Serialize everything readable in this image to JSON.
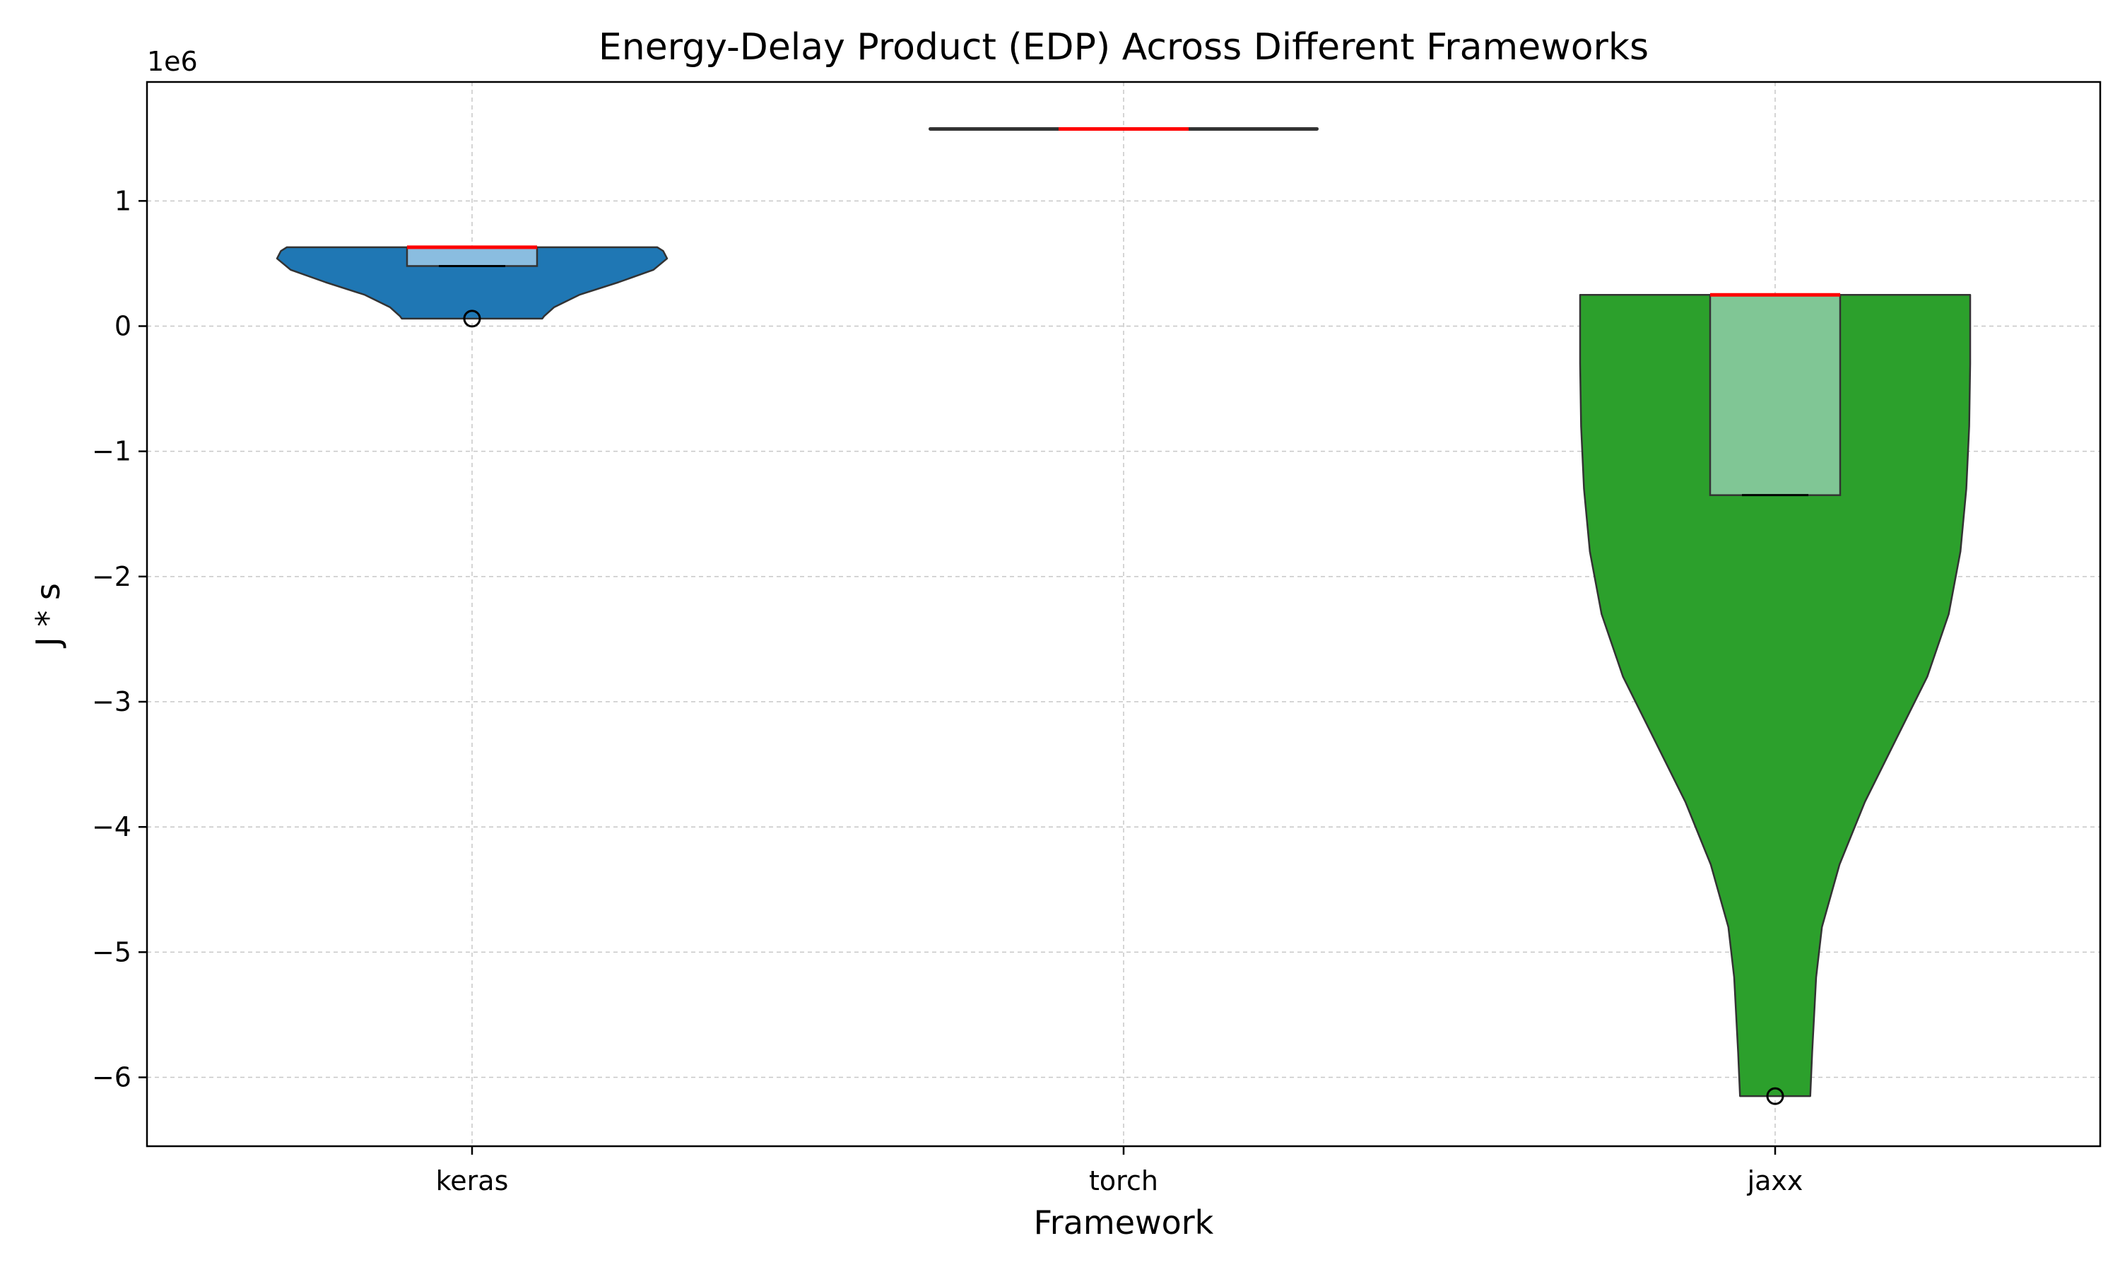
{
  "chart_data": {
    "type": "violin",
    "title": "Energy-Delay Product (EDP) Across Different Frameworks",
    "xlabel": "Framework",
    "ylabel": "J * s",
    "y_offset_label": "1e6",
    "y_scale": 1000000,
    "ylim": [
      -6550000,
      1950000
    ],
    "yticks": [
      -6,
      -5,
      -4,
      -3,
      -2,
      -1,
      0,
      1
    ],
    "grid": true,
    "categories": [
      "keras",
      "torch",
      "jaxx"
    ],
    "series": [
      {
        "category": "keras",
        "color": "#1f77b4",
        "box_color": "#9ec9e8",
        "min": 60000,
        "max": 630000,
        "q1": 480000,
        "median": 630000,
        "q3": 630000,
        "outliers": [
          60000
        ],
        "density_widths": [
          [
            60000,
            0.36
          ],
          [
            80000,
            0.37
          ],
          [
            150000,
            0.42
          ],
          [
            250000,
            0.55
          ],
          [
            350000,
            0.75
          ],
          [
            450000,
            0.93
          ],
          [
            540000,
            1.0
          ],
          [
            600000,
            0.98
          ],
          [
            630000,
            0.95
          ]
        ]
      },
      {
        "category": "torch",
        "color": "#ff7f0e",
        "box_color": "#ffbf86",
        "min": 1575000,
        "max": 1575000,
        "q1": 1575000,
        "median": 1575000,
        "q3": 1575000,
        "outliers": [],
        "density_widths": []
      },
      {
        "category": "jaxx",
        "color": "#2ca02c",
        "box_color": "#8fcca8",
        "min": -6150000,
        "max": 250000,
        "q1": -1350000,
        "median": 250000,
        "q3": 250000,
        "outliers": [
          -6150000
        ],
        "density_widths": [
          [
            -6150000,
            0.18
          ],
          [
            -5800000,
            0.19
          ],
          [
            -5500000,
            0.2
          ],
          [
            -5200000,
            0.21
          ],
          [
            -4800000,
            0.24
          ],
          [
            -4300000,
            0.33
          ],
          [
            -3800000,
            0.46
          ],
          [
            -3300000,
            0.62
          ],
          [
            -2800000,
            0.78
          ],
          [
            -2300000,
            0.89
          ],
          [
            -1800000,
            0.95
          ],
          [
            -1300000,
            0.98
          ],
          [
            -800000,
            0.995
          ],
          [
            -300000,
            1.0
          ],
          [
            250000,
            1.0
          ]
        ]
      }
    ]
  }
}
